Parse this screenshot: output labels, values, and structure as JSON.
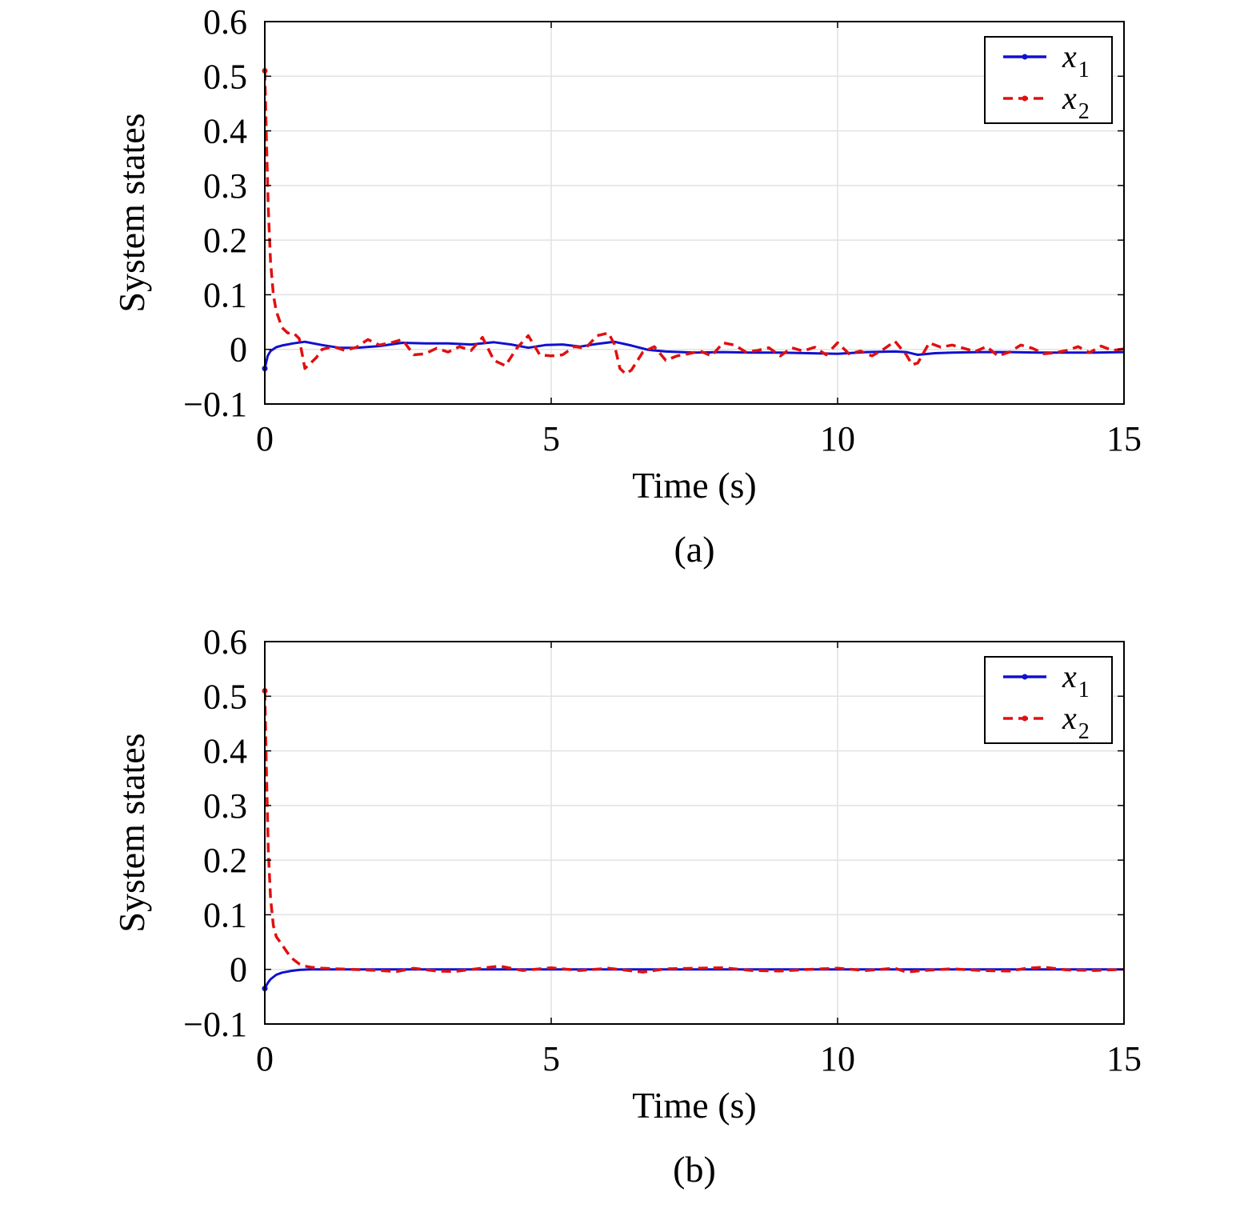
{
  "chart_data": [
    {
      "type": "line",
      "caption": "(a)",
      "xlabel": "Time (s)",
      "ylabel": "System states",
      "xlim": [
        0,
        15
      ],
      "ylim": [
        -0.1,
        0.6
      ],
      "xticks": [
        "0",
        "5",
        "10",
        "15"
      ],
      "yticks": [
        "−0.1",
        "0",
        "0.1",
        "0.2",
        "0.3",
        "0.4",
        "0.5",
        "0.6"
      ],
      "grid": true,
      "legend": "top-right",
      "colors": {
        "x1": "#1010d0",
        "x2": "#e01010"
      },
      "series": [
        {
          "name": "x1",
          "legend_base": "x",
          "legend_sub": "1",
          "style": "solid",
          "x": [
            0,
            0.05,
            0.1,
            0.2,
            0.3,
            0.5,
            0.7,
            1.0,
            1.3,
            1.6,
            2.0,
            2.4,
            2.8,
            3.2,
            3.6,
            4.0,
            4.3,
            4.6,
            4.9,
            5.2,
            5.5,
            5.8,
            6.1,
            6.4,
            6.7,
            7.0,
            7.5,
            8.0,
            8.5,
            9.0,
            9.5,
            10.0,
            10.5,
            11.0,
            11.2,
            11.4,
            11.7,
            12.0,
            12.5,
            13.0,
            13.5,
            14.0,
            14.5,
            15.0
          ],
          "y": [
            -0.035,
            -0.012,
            -0.003,
            0.004,
            0.007,
            0.011,
            0.014,
            0.008,
            0.003,
            0.003,
            0.006,
            0.012,
            0.011,
            0.011,
            0.009,
            0.013,
            0.009,
            0.003,
            0.008,
            0.009,
            0.005,
            0.01,
            0.014,
            0.007,
            -0.001,
            -0.004,
            -0.006,
            -0.005,
            -0.006,
            -0.006,
            -0.007,
            -0.008,
            -0.005,
            -0.004,
            -0.005,
            -0.01,
            -0.007,
            -0.006,
            -0.005,
            -0.005,
            -0.006,
            -0.006,
            -0.006,
            -0.005
          ]
        },
        {
          "name": "x2",
          "legend_base": "x",
          "legend_sub": "2",
          "style": "dashed",
          "x": [
            0,
            0.03,
            0.06,
            0.1,
            0.15,
            0.2,
            0.25,
            0.3,
            0.4,
            0.5,
            0.6,
            0.7,
            0.8,
            0.9,
            1.0,
            1.2,
            1.4,
            1.6,
            1.8,
            2.0,
            2.2,
            2.4,
            2.6,
            2.8,
            3.0,
            3.2,
            3.4,
            3.6,
            3.8,
            4.0,
            4.2,
            4.4,
            4.6,
            4.8,
            5.0,
            5.2,
            5.4,
            5.6,
            5.8,
            6.0,
            6.1,
            6.2,
            6.3,
            6.4,
            6.6,
            6.8,
            7.0,
            7.2,
            7.4,
            7.6,
            7.8,
            8.0,
            8.2,
            8.4,
            8.6,
            8.8,
            9.0,
            9.2,
            9.4,
            9.6,
            9.8,
            10.0,
            10.2,
            10.4,
            10.6,
            10.8,
            11.0,
            11.2,
            11.3,
            11.4,
            11.6,
            11.8,
            12.0,
            12.2,
            12.4,
            12.6,
            12.8,
            13.0,
            13.2,
            13.4,
            13.6,
            13.8,
            14.0,
            14.2,
            14.4,
            14.6,
            14.8,
            15.0
          ],
          "y": [
            0.51,
            0.38,
            0.26,
            0.16,
            0.1,
            0.07,
            0.055,
            0.04,
            0.03,
            0.03,
            0.02,
            -0.035,
            -0.025,
            -0.015,
            0.0,
            0.005,
            -0.002,
            0.004,
            0.018,
            0.008,
            0.012,
            0.018,
            -0.01,
            -0.008,
            0.002,
            -0.005,
            0.005,
            -0.002,
            0.022,
            -0.02,
            -0.03,
            0.002,
            0.025,
            -0.01,
            -0.012,
            -0.01,
            0.005,
            0.002,
            0.025,
            0.03,
            0.01,
            -0.035,
            -0.045,
            -0.038,
            -0.005,
            0.005,
            -0.02,
            -0.012,
            -0.008,
            -0.003,
            -0.012,
            0.012,
            0.008,
            -0.005,
            -0.002,
            0.003,
            -0.012,
            0.003,
            -0.003,
            0.004,
            -0.01,
            0.012,
            -0.008,
            -0.003,
            -0.012,
            0.0,
            0.015,
            -0.01,
            -0.028,
            -0.025,
            0.012,
            0.004,
            0.008,
            0.002,
            -0.004,
            0.005,
            -0.012,
            -0.005,
            0.008,
            0.002,
            -0.008,
            -0.006,
            -0.002,
            0.005,
            -0.006,
            0.006,
            -0.002,
            0.001
          ]
        }
      ]
    },
    {
      "type": "line",
      "caption": "(b)",
      "xlabel": "Time (s)",
      "ylabel": "System states",
      "xlim": [
        0,
        15
      ],
      "ylim": [
        -0.1,
        0.6
      ],
      "xticks": [
        "0",
        "5",
        "10",
        "15"
      ],
      "yticks": [
        "−0.1",
        "0",
        "0.1",
        "0.2",
        "0.3",
        "0.4",
        "0.5",
        "0.6"
      ],
      "grid": true,
      "legend": "top-right",
      "colors": {
        "x1": "#1010d0",
        "x2": "#e01010"
      },
      "series": [
        {
          "name": "x1",
          "legend_base": "x",
          "legend_sub": "1",
          "style": "solid",
          "x": [
            0,
            0.05,
            0.1,
            0.2,
            0.3,
            0.45,
            0.6,
            0.8,
            1.0,
            1.5,
            2.0,
            3.0,
            4.0,
            5.0,
            6.0,
            7.0,
            8.0,
            9.0,
            10.0,
            11.0,
            12.0,
            13.0,
            14.0,
            15.0
          ],
          "y": [
            -0.035,
            -0.025,
            -0.018,
            -0.01,
            -0.006,
            -0.003,
            -0.001,
            0.0,
            0.0,
            0.0,
            0.0,
            0.0,
            0.0,
            0.0,
            0.0,
            0.0,
            0.0,
            0.0,
            0.0,
            0.0,
            0.0,
            0.0,
            0.0,
            0.0
          ]
        },
        {
          "name": "x2",
          "legend_base": "x",
          "legend_sub": "2",
          "style": "dashed",
          "x": [
            0,
            0.03,
            0.06,
            0.1,
            0.15,
            0.2,
            0.3,
            0.4,
            0.5,
            0.6,
            0.7,
            0.8,
            1.0,
            1.5,
            2.0,
            2.3,
            2.6,
            3.0,
            3.3,
            3.7,
            4.1,
            4.5,
            5.0,
            5.5,
            6.0,
            6.6,
            7.0,
            7.5,
            8.0,
            8.5,
            9.0,
            9.5,
            10.0,
            10.5,
            11.0,
            11.2,
            11.5,
            12.0,
            12.5,
            13.0,
            13.3,
            13.6,
            14.0,
            14.5,
            15.0
          ],
          "y": [
            0.51,
            0.36,
            0.22,
            0.13,
            0.08,
            0.06,
            0.045,
            0.03,
            0.018,
            0.01,
            0.006,
            0.004,
            0.002,
            0.0,
            -0.002,
            -0.004,
            0.002,
            -0.003,
            -0.004,
            0.001,
            0.006,
            -0.002,
            0.003,
            -0.002,
            0.002,
            -0.005,
            0.001,
            0.002,
            0.003,
            -0.002,
            -0.003,
            0.0,
            0.002,
            -0.002,
            0.002,
            -0.005,
            -0.002,
            0.001,
            -0.002,
            -0.003,
            0.002,
            0.004,
            -0.001,
            -0.002,
            0.0
          ]
        }
      ]
    }
  ]
}
